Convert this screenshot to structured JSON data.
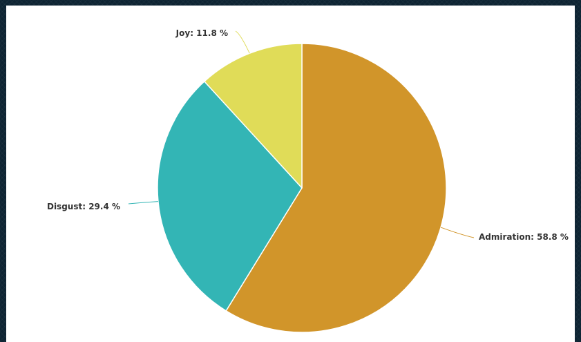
{
  "chart_data": {
    "type": "pie",
    "title": "",
    "slices": [
      {
        "name": "Admiration",
        "value": 58.8,
        "label": "Admiration: 58.8 %",
        "color": "#d1952a"
      },
      {
        "name": "Disgust",
        "value": 29.4,
        "label": "Disgust: 29.4 %",
        "color": "#33b5b5"
      },
      {
        "name": "Joy",
        "value": 11.8,
        "label": "Joy: 11.8 %",
        "color": "#e0dc58"
      }
    ],
    "start_angle_deg": 0,
    "direction": "clockwise",
    "legend": "none",
    "colors": {
      "background": "#ffffff",
      "border": "#0e2433",
      "slice_stroke": "#ffffff",
      "label_text": "#333333"
    }
  }
}
